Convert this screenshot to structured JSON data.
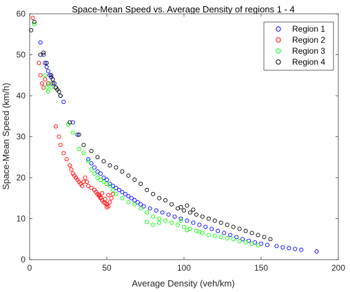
{
  "chart_data": {
    "type": "scatter",
    "title": "Space-Mean Speed vs. Average Density of regions 1 - 4",
    "xlabel": "Average Density (veh/km)",
    "ylabel": "Space-Mean Speed (km/h)",
    "xlim": [
      0,
      200
    ],
    "ylim": [
      0,
      60
    ],
    "xticks": [
      "0",
      "50",
      "100",
      "150",
      "200"
    ],
    "yticks": [
      "0",
      "10",
      "20",
      "30",
      "40",
      "50",
      "60"
    ],
    "grid": false,
    "legend_position": "top-right",
    "marker": "open-circle",
    "series": [
      {
        "name": "Region 1",
        "color": "#0000ff",
        "points": [
          [
            7,
            53
          ],
          [
            9,
            50
          ],
          [
            10,
            48
          ],
          [
            11,
            47
          ],
          [
            12,
            46
          ],
          [
            13,
            45
          ],
          [
            14,
            44.5
          ],
          [
            15,
            43
          ],
          [
            17,
            42
          ],
          [
            20,
            40
          ],
          [
            22,
            38.5
          ],
          [
            28,
            33.5
          ],
          [
            31,
            30.5
          ],
          [
            38,
            24.5
          ],
          [
            40,
            23.5
          ],
          [
            42,
            22.5
          ],
          [
            44,
            21.5
          ],
          [
            46,
            21
          ],
          [
            48,
            20
          ],
          [
            50,
            19.5
          ],
          [
            52,
            18.5
          ],
          [
            54,
            18
          ],
          [
            56,
            17.5
          ],
          [
            58,
            17
          ],
          [
            60,
            16.5
          ],
          [
            62,
            16
          ],
          [
            64,
            15.5
          ],
          [
            66,
            15
          ],
          [
            68,
            14.5
          ],
          [
            70,
            14
          ],
          [
            72,
            13.5
          ],
          [
            74,
            13
          ],
          [
            78,
            12.5
          ],
          [
            82,
            12
          ],
          [
            86,
            11.5
          ],
          [
            90,
            11
          ],
          [
            94,
            10.5
          ],
          [
            98,
            10
          ],
          [
            102,
            9.5
          ],
          [
            106,
            9
          ],
          [
            110,
            8.5
          ],
          [
            114,
            8
          ],
          [
            118,
            7.5
          ],
          [
            122,
            7
          ],
          [
            126,
            6.5
          ],
          [
            130,
            6
          ],
          [
            134,
            5.5
          ],
          [
            138,
            5
          ],
          [
            142,
            4.6
          ],
          [
            146,
            4.2
          ],
          [
            150,
            3.9
          ],
          [
            154,
            3.6
          ],
          [
            160,
            3.3
          ],
          [
            164,
            3
          ],
          [
            168,
            2.8
          ],
          [
            172,
            2.6
          ],
          [
            176,
            2.4
          ],
          [
            186,
            2
          ]
        ]
      },
      {
        "name": "Region 2",
        "color": "#ff0000",
        "points": [
          [
            2,
            59
          ],
          [
            6,
            48
          ],
          [
            7,
            45
          ],
          [
            8,
            43
          ],
          [
            9,
            42
          ],
          [
            10,
            44
          ],
          [
            12,
            43
          ],
          [
            17,
            32.5
          ],
          [
            19,
            30
          ],
          [
            20,
            28
          ],
          [
            22,
            26
          ],
          [
            24,
            24.5
          ],
          [
            26,
            23
          ],
          [
            27,
            22
          ],
          [
            28,
            21
          ],
          [
            29,
            20.5
          ],
          [
            30,
            20
          ],
          [
            31,
            19.5
          ],
          [
            32,
            19
          ],
          [
            33,
            18.5
          ],
          [
            34,
            18
          ],
          [
            35,
            19
          ],
          [
            36,
            20
          ],
          [
            37,
            19
          ],
          [
            38,
            18
          ],
          [
            40,
            17.5
          ],
          [
            42,
            17
          ],
          [
            43,
            16.5
          ],
          [
            44,
            16
          ],
          [
            45,
            15.5
          ],
          [
            46,
            15
          ],
          [
            47,
            14.5
          ],
          [
            48,
            14
          ],
          [
            49,
            13.8
          ],
          [
            50,
            13.5
          ],
          [
            51,
            13
          ],
          [
            52,
            14
          ],
          [
            53,
            15
          ],
          [
            54,
            16
          ],
          [
            46,
            15.2
          ],
          [
            45,
            15.8
          ],
          [
            47,
            16.2
          ],
          [
            49,
            14.8
          ],
          [
            51,
            15.8
          ],
          [
            50,
            12.8
          ]
        ]
      },
      {
        "name": "Region 3",
        "color": "#00ff00",
        "points": [
          [
            3,
            57.5
          ],
          [
            10,
            45
          ],
          [
            11,
            42
          ],
          [
            12,
            41
          ],
          [
            13,
            43
          ],
          [
            14,
            42
          ],
          [
            25,
            33
          ],
          [
            28,
            31
          ],
          [
            32,
            27
          ],
          [
            35,
            26
          ],
          [
            38,
            24
          ],
          [
            40,
            22
          ],
          [
            42,
            21
          ],
          [
            44,
            20
          ],
          [
            46,
            19.5
          ],
          [
            48,
            19
          ],
          [
            50,
            18.5
          ],
          [
            52,
            18
          ],
          [
            54,
            17
          ],
          [
            56,
            16
          ],
          [
            60,
            15
          ],
          [
            64,
            14
          ],
          [
            68,
            13.5
          ],
          [
            72,
            12.5
          ],
          [
            76,
            11.5
          ],
          [
            80,
            10.5
          ],
          [
            84,
            10
          ],
          [
            88,
            9.5
          ],
          [
            92,
            9
          ],
          [
            96,
            8.5
          ],
          [
            100,
            8
          ],
          [
            104,
            7.5
          ],
          [
            108,
            7
          ],
          [
            112,
            6.5
          ],
          [
            116,
            6
          ],
          [
            120,
            5.8
          ],
          [
            124,
            5.5
          ],
          [
            128,
            5.2
          ],
          [
            132,
            5
          ],
          [
            136,
            4.5
          ],
          [
            140,
            4.2
          ],
          [
            144,
            3.9
          ],
          [
            148,
            3.5
          ],
          [
            76,
            9.2
          ],
          [
            80,
            8.5
          ],
          [
            84,
            9
          ],
          [
            98,
            9.5
          ],
          [
            102,
            7.2
          ],
          [
            110,
            6.8
          ]
        ]
      },
      {
        "name": "Region 4",
        "color": "#000000",
        "points": [
          [
            1,
            56
          ],
          [
            3,
            58
          ],
          [
            7,
            50
          ],
          [
            9,
            50.5
          ],
          [
            11,
            48
          ],
          [
            14,
            45
          ],
          [
            15,
            44
          ],
          [
            16,
            43
          ],
          [
            17,
            42
          ],
          [
            18,
            41.5
          ],
          [
            19,
            41
          ],
          [
            20,
            40
          ],
          [
            26,
            33.5
          ],
          [
            32,
            30.5
          ],
          [
            35,
            28
          ],
          [
            40,
            26.5
          ],
          [
            44,
            25
          ],
          [
            48,
            24
          ],
          [
            52,
            23
          ],
          [
            56,
            22.5
          ],
          [
            60,
            21.5
          ],
          [
            64,
            20.5
          ],
          [
            68,
            19.5
          ],
          [
            72,
            18.5
          ],
          [
            76,
            17
          ],
          [
            80,
            16
          ],
          [
            84,
            15
          ],
          [
            88,
            14.5
          ],
          [
            92,
            13.5
          ],
          [
            96,
            12.5
          ],
          [
            100,
            12
          ],
          [
            104,
            11.5
          ],
          [
            108,
            11
          ],
          [
            112,
            10.5
          ],
          [
            116,
            10
          ],
          [
            120,
            9.5
          ],
          [
            124,
            9
          ],
          [
            128,
            8.5
          ],
          [
            132,
            8
          ],
          [
            136,
            7.5
          ],
          [
            140,
            7
          ],
          [
            144,
            6.5
          ],
          [
            148,
            6
          ],
          [
            152,
            5.5
          ],
          [
            156,
            5
          ],
          [
            98,
            12.8
          ],
          [
            102,
            13.2
          ],
          [
            106,
            12.2
          ]
        ]
      }
    ]
  }
}
